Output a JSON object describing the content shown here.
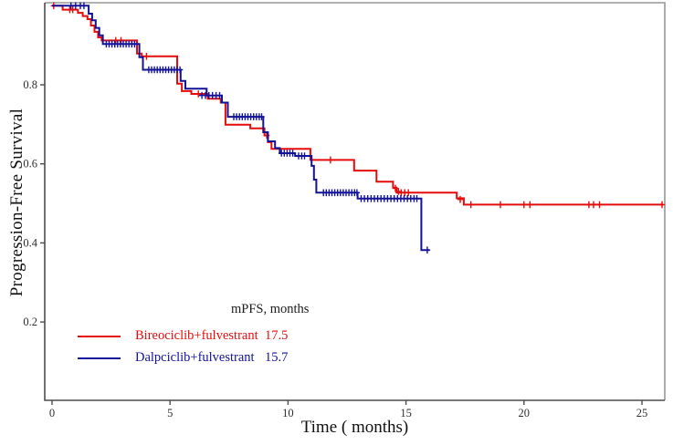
{
  "chart_data": {
    "type": "line",
    "subtype": "kaplan-meier-step",
    "title": "",
    "xlabel": "Time ( months)",
    "ylabel": "Progression-Free Survival",
    "xlim": [
      0,
      26
    ],
    "ylim": [
      0,
      1.0
    ],
    "x_ticks": [
      0,
      5,
      10,
      15,
      20,
      25
    ],
    "y_ticks": [
      0.2,
      0.4,
      0.6,
      0.8
    ],
    "grid": false,
    "legend": {
      "header": "mPFS, months",
      "position": "inside-bottom-left",
      "entries": [
        {
          "label": "Bireociclib+fulvestrant",
          "value": "17.5",
          "color": "#e60c0c"
        },
        {
          "label": "Dalpciclib+fulvestrant",
          "value": "15.7",
          "color": "#131399"
        }
      ]
    },
    "series": [
      {
        "name": "Bireociclib+fulvestrant",
        "color": "#e60c0c",
        "median_pfs_months": 17.5,
        "step_points": [
          [
            0,
            1.0
          ],
          [
            0.45,
            1.0
          ],
          [
            0.45,
            0.99
          ],
          [
            1.1,
            0.99
          ],
          [
            1.1,
            0.982
          ],
          [
            1.3,
            0.982
          ],
          [
            1.3,
            0.974
          ],
          [
            1.5,
            0.974
          ],
          [
            1.5,
            0.966
          ],
          [
            1.65,
            0.966
          ],
          [
            1.65,
            0.95
          ],
          [
            1.8,
            0.95
          ],
          [
            1.8,
            0.934
          ],
          [
            1.95,
            0.934
          ],
          [
            1.95,
            0.92
          ],
          [
            2.1,
            0.92
          ],
          [
            2.1,
            0.912
          ],
          [
            3.6,
            0.912
          ],
          [
            3.6,
            0.879
          ],
          [
            3.8,
            0.879
          ],
          [
            3.8,
            0.872
          ],
          [
            5.3,
            0.872
          ],
          [
            5.3,
            0.803
          ],
          [
            5.5,
            0.803
          ],
          [
            5.5,
            0.784
          ],
          [
            5.9,
            0.784
          ],
          [
            5.9,
            0.777
          ],
          [
            6.6,
            0.777
          ],
          [
            6.6,
            0.765
          ],
          [
            7.15,
            0.765
          ],
          [
            7.15,
            0.755
          ],
          [
            7.35,
            0.755
          ],
          [
            7.35,
            0.699
          ],
          [
            8.4,
            0.699
          ],
          [
            8.4,
            0.69
          ],
          [
            9.0,
            0.69
          ],
          [
            9.0,
            0.672
          ],
          [
            9.15,
            0.672
          ],
          [
            9.15,
            0.655
          ],
          [
            9.3,
            0.655
          ],
          [
            9.3,
            0.638
          ],
          [
            10.95,
            0.638
          ],
          [
            10.95,
            0.61
          ],
          [
            12.8,
            0.61
          ],
          [
            12.8,
            0.583
          ],
          [
            13.75,
            0.583
          ],
          [
            13.75,
            0.555
          ],
          [
            14.45,
            0.555
          ],
          [
            14.45,
            0.54
          ],
          [
            14.6,
            0.54
          ],
          [
            14.6,
            0.527
          ],
          [
            17.15,
            0.527
          ],
          [
            17.15,
            0.513
          ],
          [
            17.45,
            0.513
          ],
          [
            17.45,
            0.497
          ],
          [
            25.9,
            0.497
          ]
        ],
        "censors": [
          [
            0.07,
            1.0
          ],
          [
            0.75,
            0.99
          ],
          [
            0.88,
            0.99
          ],
          [
            2.7,
            0.912
          ],
          [
            2.92,
            0.912
          ],
          [
            4.0,
            0.872
          ],
          [
            6.2,
            0.777
          ],
          [
            9.1,
            0.672
          ],
          [
            11.8,
            0.61
          ],
          [
            14.55,
            0.538
          ],
          [
            14.68,
            0.53
          ],
          [
            14.8,
            0.527
          ],
          [
            14.95,
            0.527
          ],
          [
            15.1,
            0.527
          ],
          [
            17.3,
            0.51
          ],
          [
            17.75,
            0.497
          ],
          [
            19.0,
            0.497
          ],
          [
            20.0,
            0.497
          ],
          [
            20.25,
            0.497
          ],
          [
            22.75,
            0.497
          ],
          [
            22.95,
            0.497
          ],
          [
            23.2,
            0.497
          ],
          [
            25.85,
            0.497
          ]
        ]
      },
      {
        "name": "Dalpciclib+fulvestrant",
        "color": "#131399",
        "median_pfs_months": 15.7,
        "step_points": [
          [
            0,
            1.0
          ],
          [
            1.55,
            1.0
          ],
          [
            1.55,
            0.98
          ],
          [
            1.7,
            0.98
          ],
          [
            1.7,
            0.963
          ],
          [
            1.85,
            0.963
          ],
          [
            1.85,
            0.944
          ],
          [
            2.0,
            0.944
          ],
          [
            2.0,
            0.925
          ],
          [
            2.15,
            0.925
          ],
          [
            2.15,
            0.903
          ],
          [
            3.7,
            0.903
          ],
          [
            3.7,
            0.87
          ],
          [
            3.85,
            0.87
          ],
          [
            3.85,
            0.838
          ],
          [
            5.45,
            0.838
          ],
          [
            5.45,
            0.81
          ],
          [
            5.65,
            0.81
          ],
          [
            5.65,
            0.79
          ],
          [
            6.55,
            0.79
          ],
          [
            6.55,
            0.773
          ],
          [
            7.2,
            0.773
          ],
          [
            7.2,
            0.755
          ],
          [
            7.45,
            0.755
          ],
          [
            7.45,
            0.719
          ],
          [
            8.95,
            0.719
          ],
          [
            8.95,
            0.68
          ],
          [
            9.15,
            0.68
          ],
          [
            9.15,
            0.657
          ],
          [
            9.45,
            0.657
          ],
          [
            9.45,
            0.64
          ],
          [
            9.65,
            0.64
          ],
          [
            9.65,
            0.627
          ],
          [
            10.3,
            0.627
          ],
          [
            10.3,
            0.62
          ],
          [
            11.0,
            0.62
          ],
          [
            11.0,
            0.595
          ],
          [
            11.1,
            0.595
          ],
          [
            11.1,
            0.56
          ],
          [
            11.2,
            0.56
          ],
          [
            11.2,
            0.527
          ],
          [
            12.95,
            0.527
          ],
          [
            12.95,
            0.512
          ],
          [
            15.65,
            0.512
          ],
          [
            15.65,
            0.382
          ],
          [
            16.0,
            0.382
          ]
        ],
        "censors": [
          [
            0.8,
            1.0
          ],
          [
            1.0,
            1.0
          ],
          [
            1.2,
            1.0
          ],
          [
            1.35,
            1.0
          ],
          [
            2.3,
            0.903
          ],
          [
            2.42,
            0.903
          ],
          [
            2.54,
            0.903
          ],
          [
            2.66,
            0.903
          ],
          [
            2.78,
            0.903
          ],
          [
            2.9,
            0.903
          ],
          [
            3.02,
            0.903
          ],
          [
            3.14,
            0.903
          ],
          [
            3.26,
            0.903
          ],
          [
            3.38,
            0.903
          ],
          [
            3.5,
            0.903
          ],
          [
            4.1,
            0.838
          ],
          [
            4.22,
            0.838
          ],
          [
            4.34,
            0.838
          ],
          [
            4.46,
            0.838
          ],
          [
            4.58,
            0.838
          ],
          [
            4.7,
            0.838
          ],
          [
            4.82,
            0.838
          ],
          [
            4.94,
            0.838
          ],
          [
            5.06,
            0.838
          ],
          [
            5.18,
            0.838
          ],
          [
            5.3,
            0.838
          ],
          [
            5.42,
            0.838
          ],
          [
            6.35,
            0.773
          ],
          [
            6.5,
            0.773
          ],
          [
            6.65,
            0.773
          ],
          [
            6.8,
            0.773
          ],
          [
            6.95,
            0.773
          ],
          [
            7.1,
            0.773
          ],
          [
            7.7,
            0.719
          ],
          [
            7.82,
            0.719
          ],
          [
            7.94,
            0.719
          ],
          [
            8.06,
            0.719
          ],
          [
            8.18,
            0.719
          ],
          [
            8.3,
            0.719
          ],
          [
            8.42,
            0.719
          ],
          [
            8.54,
            0.719
          ],
          [
            8.66,
            0.719
          ],
          [
            8.78,
            0.719
          ],
          [
            8.88,
            0.719
          ],
          [
            9.72,
            0.627
          ],
          [
            9.84,
            0.627
          ],
          [
            9.96,
            0.627
          ],
          [
            10.08,
            0.627
          ],
          [
            10.2,
            0.627
          ],
          [
            10.45,
            0.62
          ],
          [
            10.58,
            0.62
          ],
          [
            10.7,
            0.62
          ],
          [
            11.5,
            0.527
          ],
          [
            11.62,
            0.527
          ],
          [
            11.74,
            0.527
          ],
          [
            11.86,
            0.527
          ],
          [
            11.98,
            0.527
          ],
          [
            12.1,
            0.527
          ],
          [
            12.22,
            0.527
          ],
          [
            12.34,
            0.527
          ],
          [
            12.46,
            0.527
          ],
          [
            12.58,
            0.527
          ],
          [
            12.7,
            0.527
          ],
          [
            12.82,
            0.527
          ],
          [
            12.92,
            0.527
          ],
          [
            13.1,
            0.512
          ],
          [
            13.24,
            0.512
          ],
          [
            13.38,
            0.512
          ],
          [
            13.52,
            0.512
          ],
          [
            13.66,
            0.512
          ],
          [
            13.8,
            0.512
          ],
          [
            13.94,
            0.512
          ],
          [
            14.08,
            0.512
          ],
          [
            14.22,
            0.512
          ],
          [
            14.36,
            0.512
          ],
          [
            14.5,
            0.512
          ],
          [
            14.64,
            0.512
          ],
          [
            14.78,
            0.512
          ],
          [
            14.92,
            0.512
          ],
          [
            15.06,
            0.512
          ],
          [
            15.2,
            0.512
          ],
          [
            15.34,
            0.512
          ],
          [
            15.46,
            0.512
          ],
          [
            15.9,
            0.382
          ]
        ]
      }
    ]
  }
}
